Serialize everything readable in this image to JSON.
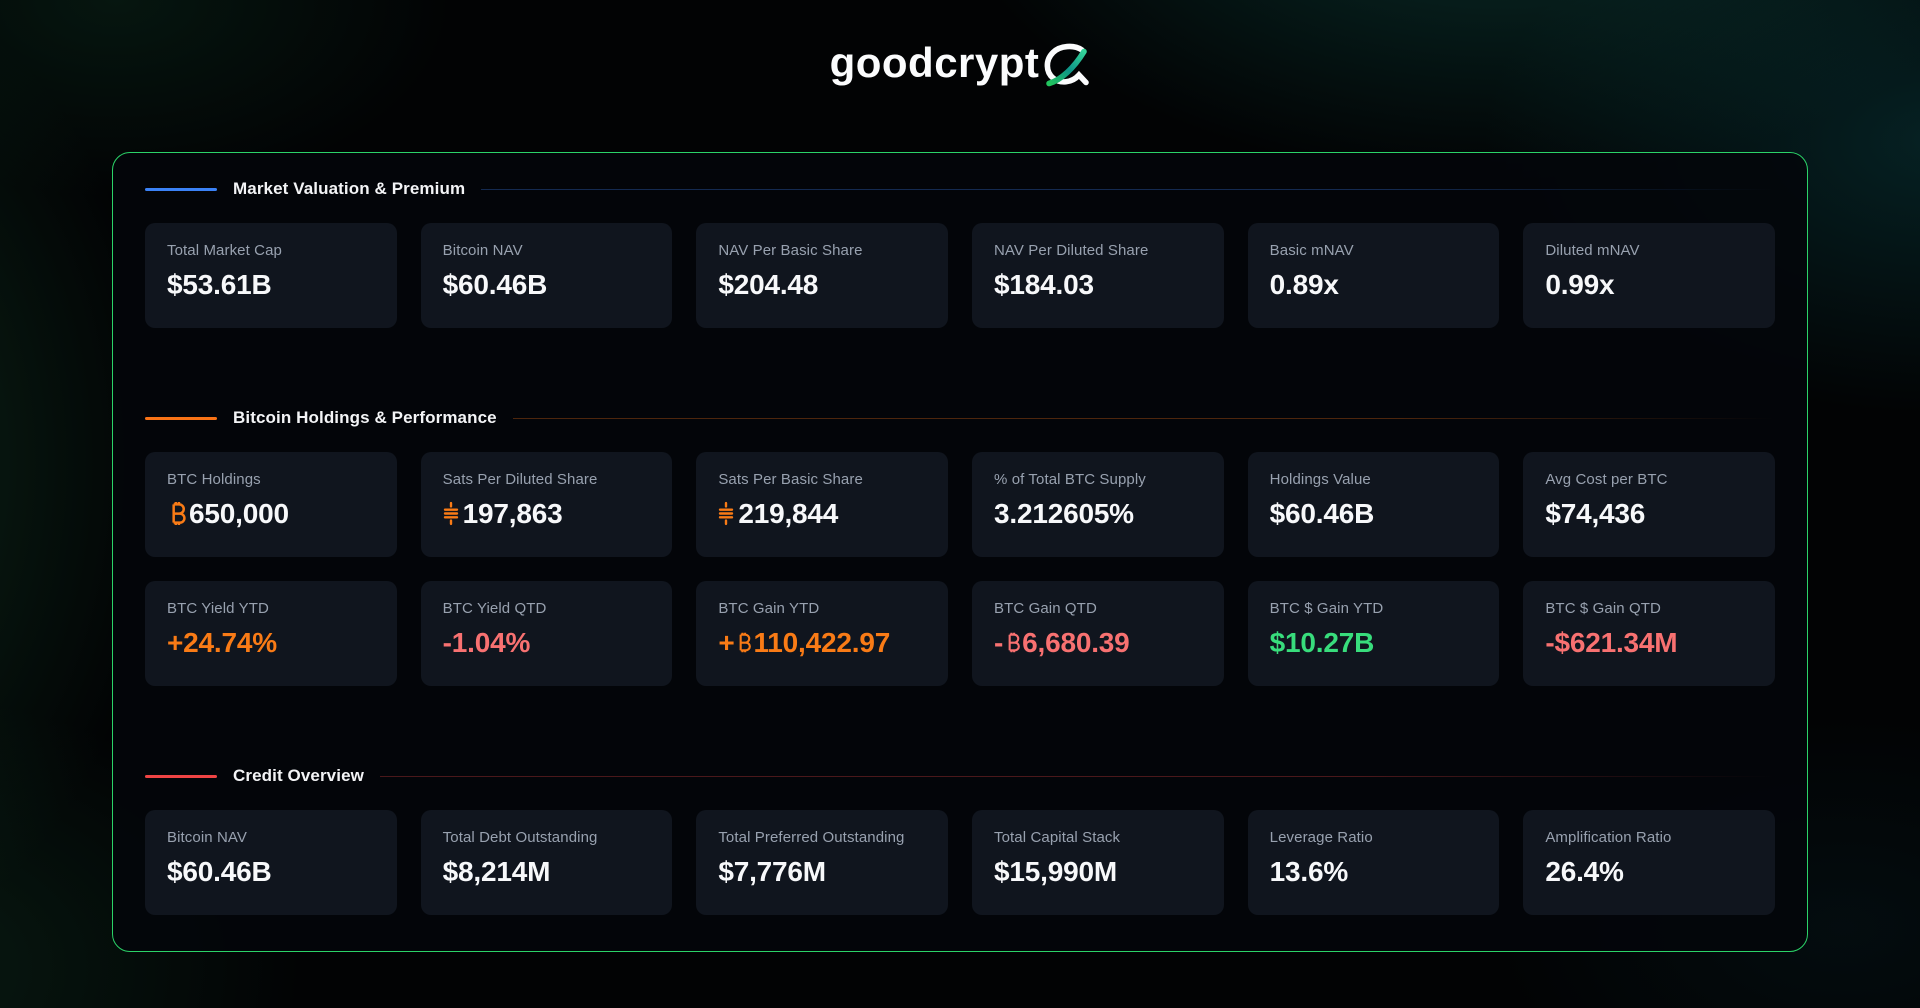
{
  "logo": {
    "text": "goodcrypt"
  },
  "palette": {
    "white": "#f7f8fa",
    "orange": "#f97b16",
    "red": "#f87171",
    "green": "#38dd7c",
    "panel_border": "#2bd368"
  },
  "sections": [
    {
      "title": "Market Valuation & Premium",
      "accent": "#3b82f6",
      "rows": [
        [
          {
            "label": "Total Market Cap",
            "value": "$53.61B",
            "color": "white"
          },
          {
            "label": "Bitcoin NAV",
            "value": "$60.46B",
            "color": "white"
          },
          {
            "label": "NAV Per Basic Share",
            "value": "$204.48",
            "color": "white"
          },
          {
            "label": "NAV Per Diluted Share",
            "value": "$184.03",
            "color": "white"
          },
          {
            "label": "Basic mNAV",
            "value": "0.89x",
            "color": "white"
          },
          {
            "label": "Diluted mNAV",
            "value": "0.99x",
            "color": "white"
          }
        ]
      ]
    },
    {
      "title": "Bitcoin Holdings & Performance",
      "accent": "#f97316",
      "rows": [
        [
          {
            "label": "BTC Holdings",
            "value": "650,000",
            "color": "white",
            "icon": "btc"
          },
          {
            "label": "Sats Per Diluted Share",
            "value": "197,863",
            "color": "white",
            "icon": "sats"
          },
          {
            "label": "Sats Per Basic Share",
            "value": "219,844",
            "color": "white",
            "icon": "sats"
          },
          {
            "label": "% of Total BTC Supply",
            "value": "3.212605%",
            "color": "white"
          },
          {
            "label": "Holdings Value",
            "value": "$60.46B",
            "color": "white"
          },
          {
            "label": "Avg Cost per BTC",
            "value": "$74,436",
            "color": "white"
          }
        ],
        [
          {
            "label": "BTC Yield YTD",
            "value": "+24.74%",
            "color": "orange"
          },
          {
            "label": "BTC Yield QTD",
            "value": "-1.04%",
            "color": "red"
          },
          {
            "label": "BTC Gain YTD",
            "value": "+₿110,422.97",
            "color": "orange"
          },
          {
            "label": "BTC Gain QTD",
            "value": "-₿6,680.39",
            "color": "red"
          },
          {
            "label": "BTC $ Gain YTD",
            "value": "$10.27B",
            "color": "green"
          },
          {
            "label": "BTC $ Gain QTD",
            "value": "-$621.34M",
            "color": "red"
          }
        ]
      ]
    },
    {
      "title": "Credit Overview",
      "accent": "#ef4444",
      "rows": [
        [
          {
            "label": "Bitcoin NAV",
            "value": "$60.46B",
            "color": "white"
          },
          {
            "label": "Total Debt Outstanding",
            "value": "$8,214M",
            "color": "white"
          },
          {
            "label": "Total Preferred Outstanding",
            "value": "$7,776M",
            "color": "white"
          },
          {
            "label": "Total Capital Stack",
            "value": "$15,990M",
            "color": "white"
          },
          {
            "label": "Leverage Ratio",
            "value": "13.6%",
            "color": "white"
          },
          {
            "label": "Amplification Ratio",
            "value": "26.4%",
            "color": "white"
          }
        ]
      ]
    }
  ]
}
